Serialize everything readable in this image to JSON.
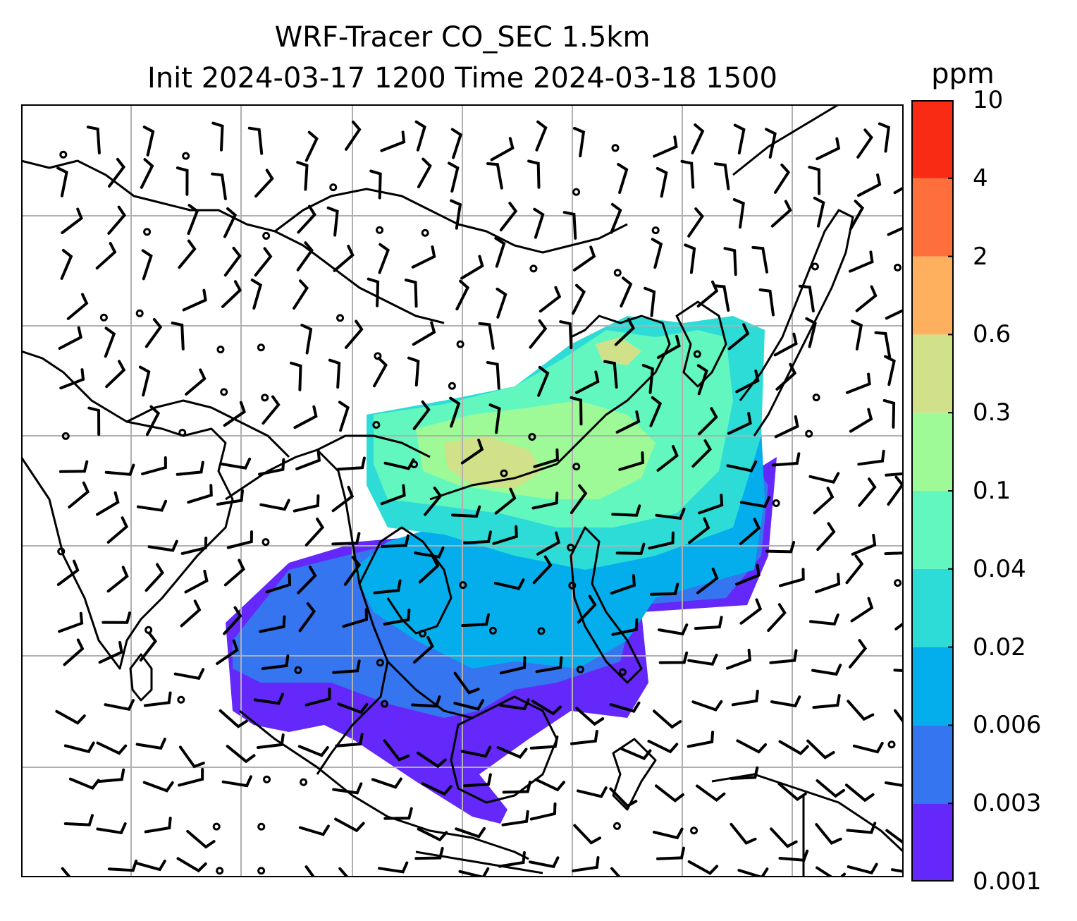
{
  "title": {
    "line1": "WRF-Tracer CO_SEC 1.5km",
    "line2": "Init 2024-03-17 1200 Time 2024-03-18 1500"
  },
  "colorbar": {
    "unit": "ppm",
    "levels": [
      "0.001",
      "0.003",
      "0.006",
      "0.02",
      "0.04",
      "0.1",
      "0.3",
      "0.6",
      "2",
      "4",
      "10"
    ],
    "colors": [
      "#6428fa",
      "#3575f0",
      "#04aeec",
      "#2ddcd6",
      "#63f7c0",
      "#9efa96",
      "#d1e189",
      "#feb05f",
      "#fe6f3c",
      "#fa2b15"
    ]
  },
  "map": {
    "background": "#ffffff",
    "gridline_color": "#b0b0b0",
    "coastline_color": "#000000",
    "plume_shading": "CO_SEC tracer concentration over Southeast/East Asia with wind barbs"
  }
}
